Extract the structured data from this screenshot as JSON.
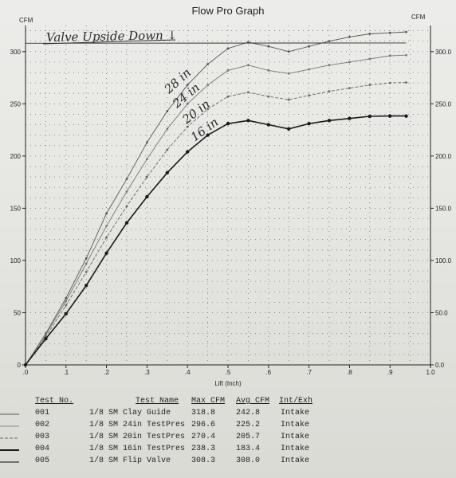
{
  "chart_data": {
    "type": "line",
    "title": "Flow Pro Graph",
    "xlabel": "Lift (Inch)",
    "ylabel_left": "CFM",
    "ylabel_right": "CFM",
    "xlim": [
      0,
      1.0
    ],
    "ylim": [
      0,
      325
    ],
    "x_ticks": [
      ".0",
      ".1",
      ".2",
      ".3",
      ".4",
      ".5",
      ".6",
      ".7",
      ".8",
      ".9",
      "1.0"
    ],
    "y_left_ticks": [
      "0",
      "50",
      "100",
      "150",
      "200",
      "250",
      "300"
    ],
    "y_right_ticks": [
      "0.0",
      "50.0",
      "100.0",
      "150.0",
      "200.0",
      "250.0",
      "300.0"
    ],
    "grid": true,
    "series": [
      {
        "name": "1/8 SM Clay Guide",
        "style": "solid",
        "color": "#555555",
        "x": [
          0,
          0.05,
          0.1,
          0.15,
          0.2,
          0.25,
          0.3,
          0.35,
          0.4,
          0.45,
          0.5,
          0.55,
          0.6,
          0.65,
          0.7,
          0.75,
          0.8,
          0.85,
          0.9,
          0.94
        ],
        "y": [
          0,
          30,
          64,
          102,
          145,
          178,
          213,
          243,
          268,
          288,
          303,
          309,
          305,
          300,
          305,
          310,
          314,
          317,
          318,
          318.8
        ]
      },
      {
        "name": "1/8 SM 24in TestPres",
        "style": "solid",
        "color": "#777777",
        "x": [
          0,
          0.05,
          0.1,
          0.15,
          0.2,
          0.25,
          0.3,
          0.35,
          0.4,
          0.45,
          0.5,
          0.55,
          0.6,
          0.65,
          0.7,
          0.75,
          0.8,
          0.85,
          0.9,
          0.94
        ],
        "y": [
          0,
          29,
          61,
          97,
          133,
          166,
          197,
          226,
          250,
          268,
          282,
          287,
          282,
          279,
          283,
          287,
          290,
          293,
          296,
          296.6
        ]
      },
      {
        "name": "1/8 SM 20in TestPres",
        "style": "dashed",
        "color": "#666666",
        "x": [
          0,
          0.05,
          0.1,
          0.15,
          0.2,
          0.25,
          0.3,
          0.35,
          0.4,
          0.45,
          0.5,
          0.55,
          0.6,
          0.65,
          0.7,
          0.75,
          0.8,
          0.85,
          0.9,
          0.94
        ],
        "y": [
          0,
          27,
          57,
          89,
          122,
          152,
          180,
          206,
          228,
          245,
          257,
          261,
          257,
          254,
          258,
          262,
          265,
          268,
          270,
          270.4
        ]
      },
      {
        "name": "1/8 SM 16in TestPres",
        "style": "bold",
        "color": "#1a1a1a",
        "x": [
          0,
          0.05,
          0.1,
          0.15,
          0.2,
          0.25,
          0.3,
          0.35,
          0.4,
          0.45,
          0.5,
          0.55,
          0.6,
          0.65,
          0.7,
          0.75,
          0.8,
          0.85,
          0.9,
          0.94
        ],
        "y": [
          0,
          25,
          49,
          76,
          107,
          136,
          161,
          184,
          204,
          220,
          231,
          234,
          230,
          226,
          231,
          234,
          236,
          238,
          238.3,
          238.3
        ]
      },
      {
        "name": "1/8 SM Flip Valve",
        "style": "solid",
        "color": "#333333",
        "x": [
          0.0,
          0.94
        ],
        "y": [
          308.0,
          308.3
        ]
      }
    ],
    "annotations": [
      {
        "text": "Valve Upside Down ↓",
        "kind": "handwritten"
      },
      {
        "text": "28 in",
        "kind": "handwritten"
      },
      {
        "text": "24 in",
        "kind": "handwritten"
      },
      {
        "text": "20 in",
        "kind": "handwritten"
      },
      {
        "text": "16 in",
        "kind": "handwritten"
      }
    ]
  },
  "legend": {
    "headers": {
      "test_no": "Test No.",
      "test_name": "Test Name",
      "max_cfm": "Max CFM",
      "avg_cfm": "Avg CFM",
      "int_exh": "Int/Exh"
    },
    "rows": [
      {
        "no": "001",
        "name": "1/8 SM Clay Guide",
        "max": "318.8",
        "avg": "242.8",
        "ie": "Intake"
      },
      {
        "no": "002",
        "name": "1/8 SM 24in TestPres",
        "max": "296.6",
        "avg": "225.2",
        "ie": "Intake"
      },
      {
        "no": "003",
        "name": "1/8 SM 20in TestPres",
        "max": "270.4",
        "avg": "205.7",
        "ie": "Intake"
      },
      {
        "no": "004",
        "name": "1/8 SM 16in TestPres",
        "max": "238.3",
        "avg": "183.4",
        "ie": "Intake"
      },
      {
        "no": "005",
        "name": "1/8 SM Flip Valve",
        "max": "308.3",
        "avg": "308.0",
        "ie": "Intake"
      }
    ]
  }
}
